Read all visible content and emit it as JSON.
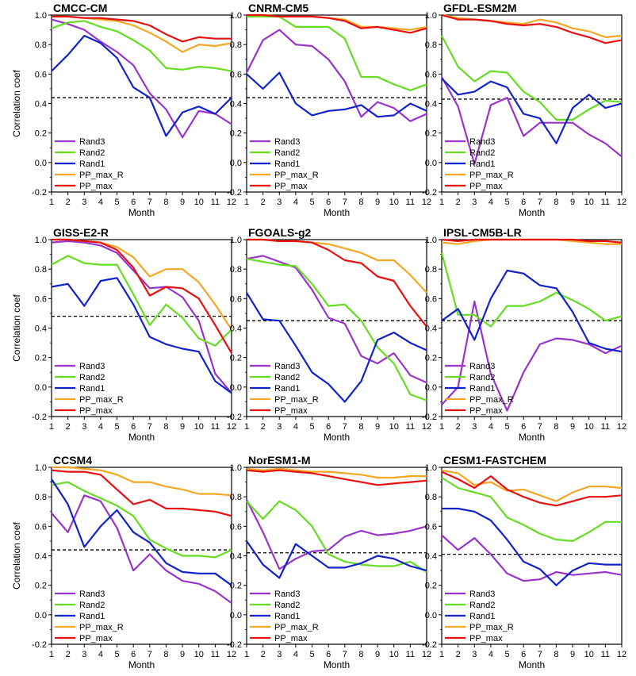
{
  "figure": {
    "ylabel": "Correlation coef",
    "xlabel": "Month",
    "x_ticks": [
      "1",
      "2",
      "3",
      "4",
      "5",
      "6",
      "7",
      "8",
      "9",
      "10",
      "11",
      "12"
    ],
    "y_ticks": [
      "-0.2",
      "0.0",
      "0.2",
      "0.4",
      "0.6",
      "0.8",
      "1.0"
    ],
    "series_colors": {
      "Rand3": "#9933cc",
      "Rand2": "#66dd22",
      "Rand1": "#1122cc",
      "PP_max_R": "#f5a623",
      "PP_max": "#e81010"
    },
    "legend_order": [
      "Rand3",
      "Rand2",
      "Rand1",
      "PP_max_R",
      "PP_max"
    ],
    "legend_placement": "bottom-left"
  },
  "chart_data": [
    {
      "type": "line",
      "title": "CMCC-CM",
      "x": [
        1,
        2,
        3,
        4,
        5,
        6,
        7,
        8,
        9,
        10,
        11,
        12
      ],
      "ylim": [
        -0.2,
        1.0
      ],
      "reference_line": 0.44,
      "series": [
        {
          "name": "Rand3",
          "values": [
            0.97,
            0.94,
            0.9,
            0.82,
            0.75,
            0.66,
            0.47,
            0.36,
            0.17,
            0.35,
            0.33,
            0.26
          ]
        },
        {
          "name": "Rand2",
          "values": [
            0.91,
            0.95,
            0.96,
            0.92,
            0.89,
            0.83,
            0.76,
            0.64,
            0.63,
            0.65,
            0.64,
            0.62
          ]
        },
        {
          "name": "Rand1",
          "values": [
            0.62,
            0.73,
            0.86,
            0.81,
            0.71,
            0.51,
            0.44,
            0.18,
            0.34,
            0.38,
            0.33,
            0.44
          ]
        },
        {
          "name": "PP_max_R",
          "values": [
            0.99,
            0.99,
            0.98,
            0.97,
            0.96,
            0.93,
            0.88,
            0.82,
            0.75,
            0.8,
            0.79,
            0.81
          ]
        },
        {
          "name": "PP_max",
          "values": [
            0.99,
            0.99,
            0.98,
            0.98,
            0.97,
            0.96,
            0.93,
            0.87,
            0.82,
            0.85,
            0.84,
            0.84
          ]
        }
      ]
    },
    {
      "type": "line",
      "title": "CNRM-CM5",
      "x": [
        1,
        2,
        3,
        4,
        5,
        6,
        7,
        8,
        9,
        10,
        11,
        12
      ],
      "ylim": [
        -0.2,
        1.0
      ],
      "reference_line": 0.44,
      "series": [
        {
          "name": "Rand3",
          "values": [
            0.61,
            0.83,
            0.9,
            0.8,
            0.79,
            0.7,
            0.55,
            0.31,
            0.41,
            0.37,
            0.28,
            0.33
          ]
        },
        {
          "name": "Rand2",
          "values": [
            0.99,
            0.99,
            0.99,
            0.92,
            0.92,
            0.92,
            0.84,
            0.58,
            0.58,
            0.53,
            0.49,
            0.53
          ]
        },
        {
          "name": "Rand1",
          "values": [
            0.6,
            0.5,
            0.61,
            0.4,
            0.32,
            0.35,
            0.36,
            0.39,
            0.31,
            0.32,
            0.4,
            0.35
          ]
        },
        {
          "name": "PP_max_R",
          "values": [
            1.0,
            1.0,
            0.99,
            0.99,
            0.99,
            0.98,
            0.97,
            0.92,
            0.92,
            0.91,
            0.9,
            0.92
          ]
        },
        {
          "name": "PP_max",
          "values": [
            1.0,
            1.0,
            0.99,
            0.99,
            0.99,
            0.98,
            0.96,
            0.91,
            0.92,
            0.9,
            0.88,
            0.91
          ]
        }
      ]
    },
    {
      "type": "line",
      "title": "GFDL-ESM2M",
      "x": [
        1,
        2,
        3,
        4,
        5,
        6,
        7,
        8,
        9,
        10,
        11,
        12
      ],
      "ylim": [
        -0.2,
        1.0
      ],
      "reference_line": 0.43,
      "series": [
        {
          "name": "Rand3",
          "values": [
            0.58,
            0.38,
            -0.01,
            0.39,
            0.44,
            0.18,
            0.27,
            0.27,
            0.27,
            0.19,
            0.13,
            0.04
          ]
        },
        {
          "name": "Rand2",
          "values": [
            0.86,
            0.65,
            0.55,
            0.62,
            0.61,
            0.48,
            0.41,
            0.29,
            0.29,
            0.36,
            0.42,
            0.41
          ]
        },
        {
          "name": "Rand1",
          "values": [
            0.57,
            0.46,
            0.48,
            0.55,
            0.51,
            0.33,
            0.3,
            0.13,
            0.37,
            0.46,
            0.37,
            0.4
          ]
        },
        {
          "name": "PP_max_R",
          "values": [
            1.0,
            0.98,
            0.97,
            0.96,
            0.95,
            0.94,
            0.97,
            0.95,
            0.91,
            0.89,
            0.85,
            0.86
          ]
        },
        {
          "name": "PP_max",
          "values": [
            1.0,
            0.97,
            0.97,
            0.96,
            0.94,
            0.93,
            0.94,
            0.92,
            0.88,
            0.85,
            0.81,
            0.83
          ]
        }
      ]
    },
    {
      "type": "line",
      "title": "GISS-E2-R",
      "x": [
        1,
        2,
        3,
        4,
        5,
        6,
        7,
        8,
        9,
        10,
        11,
        12
      ],
      "ylim": [
        -0.2,
        1.0
      ],
      "reference_line": 0.48,
      "series": [
        {
          "name": "Rand3",
          "values": [
            0.98,
            0.99,
            0.98,
            0.96,
            0.91,
            0.79,
            0.67,
            0.68,
            0.61,
            0.45,
            0.09,
            -0.04
          ]
        },
        {
          "name": "Rand2",
          "values": [
            0.83,
            0.89,
            0.84,
            0.83,
            0.83,
            0.63,
            0.42,
            0.56,
            0.47,
            0.33,
            0.28,
            0.39
          ]
        },
        {
          "name": "Rand1",
          "values": [
            0.68,
            0.7,
            0.55,
            0.72,
            0.74,
            0.56,
            0.34,
            0.29,
            0.26,
            0.24,
            0.04,
            -0.04
          ]
        },
        {
          "name": "PP_max_R",
          "values": [
            1.0,
            1.0,
            0.99,
            0.98,
            0.95,
            0.88,
            0.75,
            0.8,
            0.8,
            0.71,
            0.56,
            0.39
          ]
        },
        {
          "name": "PP_max",
          "values": [
            1.0,
            1.0,
            0.99,
            0.98,
            0.93,
            0.81,
            0.62,
            0.68,
            0.67,
            0.6,
            0.42,
            0.23
          ]
        }
      ]
    },
    {
      "type": "line",
      "title": "FGOALS-g2",
      "x": [
        1,
        2,
        3,
        4,
        5,
        6,
        7,
        8,
        9,
        10,
        11,
        12
      ],
      "ylim": [
        -0.2,
        1.0
      ],
      "reference_line": 0.45,
      "series": [
        {
          "name": "Rand3",
          "values": [
            0.87,
            0.89,
            0.85,
            0.81,
            0.66,
            0.47,
            0.43,
            0.21,
            0.16,
            0.23,
            0.08,
            0.03
          ]
        },
        {
          "name": "Rand2",
          "values": [
            0.87,
            0.85,
            0.83,
            0.82,
            0.7,
            0.55,
            0.56,
            0.45,
            0.27,
            0.16,
            -0.05,
            -0.09
          ]
        },
        {
          "name": "Rand1",
          "values": [
            0.64,
            0.46,
            0.45,
            0.28,
            0.1,
            0.02,
            -0.1,
            0.04,
            0.32,
            0.37,
            0.3,
            0.25
          ]
        },
        {
          "name": "PP_max_R",
          "values": [
            1.0,
            1.0,
            0.99,
            0.99,
            0.98,
            0.97,
            0.94,
            0.91,
            0.86,
            0.86,
            0.76,
            0.64
          ]
        },
        {
          "name": "PP_max",
          "values": [
            1.0,
            1.0,
            0.99,
            0.99,
            0.98,
            0.93,
            0.86,
            0.84,
            0.75,
            0.72,
            0.55,
            0.41
          ]
        }
      ]
    },
    {
      "type": "line",
      "title": "IPSL-CM5B-LR",
      "x": [
        1,
        2,
        3,
        4,
        5,
        6,
        7,
        8,
        9,
        10,
        11,
        12
      ],
      "ylim": [
        -0.2,
        1.0
      ],
      "reference_line": 0.45,
      "series": [
        {
          "name": "Rand3",
          "values": [
            -0.12,
            0.0,
            0.58,
            0.09,
            -0.16,
            0.1,
            0.29,
            0.33,
            0.32,
            0.29,
            0.23,
            0.28
          ]
        },
        {
          "name": "Rand2",
          "values": [
            0.91,
            0.49,
            0.49,
            0.41,
            0.55,
            0.55,
            0.58,
            0.64,
            0.59,
            0.53,
            0.45,
            0.48
          ]
        },
        {
          "name": "Rand1",
          "values": [
            0.45,
            0.53,
            0.32,
            0.6,
            0.79,
            0.77,
            0.69,
            0.67,
            0.51,
            0.3,
            0.26,
            0.24
          ]
        },
        {
          "name": "PP_max_R",
          "values": [
            0.98,
            0.97,
            0.99,
            1.0,
            1.0,
            1.0,
            1.0,
            1.0,
            0.99,
            0.98,
            0.97,
            0.97
          ]
        },
        {
          "name": "PP_max",
          "values": [
            1.0,
            0.99,
            1.0,
            1.0,
            1.0,
            1.0,
            1.0,
            1.0,
            1.0,
            0.99,
            0.99,
            0.98
          ]
        }
      ]
    },
    {
      "type": "line",
      "title": "CCSM4",
      "x": [
        1,
        2,
        3,
        4,
        5,
        6,
        7,
        8,
        9,
        10,
        11,
        12
      ],
      "ylim": [
        -0.2,
        1.0
      ],
      "reference_line": 0.44,
      "series": [
        {
          "name": "Rand3",
          "values": [
            0.69,
            0.56,
            0.81,
            0.77,
            0.59,
            0.3,
            0.41,
            0.3,
            0.23,
            0.21,
            0.16,
            0.08
          ]
        },
        {
          "name": "Rand2",
          "values": [
            0.88,
            0.9,
            0.84,
            0.79,
            0.74,
            0.67,
            0.51,
            0.45,
            0.4,
            0.4,
            0.39,
            0.44
          ]
        },
        {
          "name": "Rand1",
          "values": [
            0.92,
            0.75,
            0.46,
            0.6,
            0.71,
            0.56,
            0.49,
            0.35,
            0.29,
            0.28,
            0.28,
            0.2
          ]
        },
        {
          "name": "PP_max_R",
          "values": [
            1.0,
            1.0,
            0.99,
            0.98,
            0.95,
            0.9,
            0.9,
            0.87,
            0.85,
            0.82,
            0.82,
            0.81
          ]
        },
        {
          "name": "PP_max",
          "values": [
            0.98,
            0.97,
            0.97,
            0.95,
            0.85,
            0.75,
            0.78,
            0.72,
            0.72,
            0.71,
            0.7,
            0.67
          ]
        }
      ]
    },
    {
      "type": "line",
      "title": "NorESM1-M",
      "x": [
        1,
        2,
        3,
        4,
        5,
        6,
        7,
        8,
        9,
        10,
        11,
        12
      ],
      "ylim": [
        -0.2,
        1.0
      ],
      "reference_line": 0.42,
      "series": [
        {
          "name": "Rand3",
          "values": [
            0.78,
            0.56,
            0.31,
            0.38,
            0.43,
            0.44,
            0.53,
            0.57,
            0.54,
            0.55,
            0.57,
            0.6
          ]
        },
        {
          "name": "Rand2",
          "values": [
            0.77,
            0.65,
            0.77,
            0.71,
            0.6,
            0.41,
            0.36,
            0.34,
            0.33,
            0.33,
            0.36,
            0.29
          ]
        },
        {
          "name": "Rand1",
          "values": [
            0.5,
            0.34,
            0.25,
            0.48,
            0.4,
            0.32,
            0.32,
            0.35,
            0.4,
            0.38,
            0.33,
            0.3
          ]
        },
        {
          "name": "PP_max_R",
          "values": [
            0.99,
            0.98,
            0.99,
            0.98,
            0.97,
            0.97,
            0.96,
            0.95,
            0.93,
            0.93,
            0.94,
            0.94
          ]
        },
        {
          "name": "PP_max",
          "values": [
            0.98,
            0.97,
            0.98,
            0.97,
            0.96,
            0.94,
            0.92,
            0.9,
            0.88,
            0.89,
            0.9,
            0.91
          ]
        }
      ]
    },
    {
      "type": "line",
      "title": "CESM1-FASTCHEM",
      "x": [
        1,
        2,
        3,
        4,
        5,
        6,
        7,
        8,
        9,
        10,
        11,
        12
      ],
      "ylim": [
        -0.2,
        1.0
      ],
      "reference_line": 0.41,
      "series": [
        {
          "name": "Rand3",
          "values": [
            0.54,
            0.44,
            0.52,
            0.41,
            0.28,
            0.23,
            0.24,
            0.29,
            0.27,
            0.28,
            0.29,
            0.27
          ]
        },
        {
          "name": "Rand2",
          "values": [
            0.93,
            0.86,
            0.83,
            0.8,
            0.66,
            0.61,
            0.55,
            0.51,
            0.5,
            0.56,
            0.63,
            0.63
          ]
        },
        {
          "name": "Rand1",
          "values": [
            0.72,
            0.72,
            0.7,
            0.64,
            0.51,
            0.36,
            0.31,
            0.2,
            0.3,
            0.35,
            0.34,
            0.34
          ]
        },
        {
          "name": "PP_max_R",
          "values": [
            0.98,
            0.96,
            0.88,
            0.9,
            0.84,
            0.85,
            0.81,
            0.77,
            0.83,
            0.87,
            0.87,
            0.86
          ]
        },
        {
          "name": "PP_max",
          "values": [
            0.97,
            0.92,
            0.86,
            0.94,
            0.85,
            0.8,
            0.76,
            0.74,
            0.77,
            0.8,
            0.8,
            0.81
          ]
        }
      ]
    }
  ]
}
